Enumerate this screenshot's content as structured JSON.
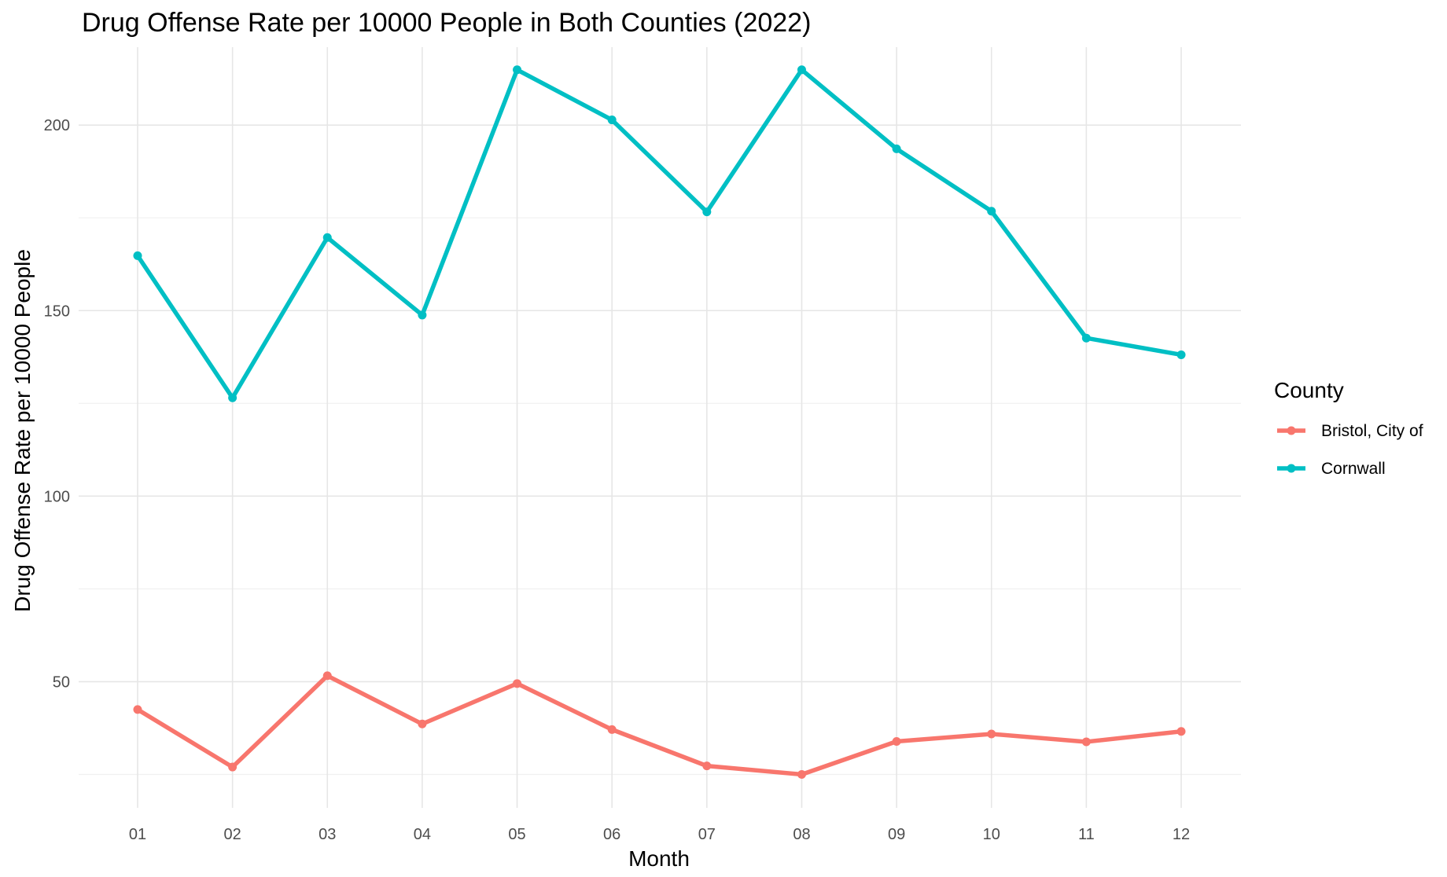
{
  "chart_data": {
    "type": "line",
    "title": "Drug Offense Rate per 10000 People in Both Counties (2022)",
    "xlabel": "Month",
    "ylabel": "Drug Offense Rate per 10000 People",
    "categories": [
      "01",
      "02",
      "03",
      "04",
      "05",
      "06",
      "07",
      "08",
      "09",
      "10",
      "11",
      "12"
    ],
    "y_ticks": [
      50,
      100,
      150,
      200
    ],
    "ylim": [
      16,
      221
    ],
    "grid": true,
    "legend_title": "County",
    "legend_position": "right",
    "series": [
      {
        "name": "Bristol, City of",
        "color": "#F8766D",
        "values": [
          42.5,
          27.0,
          51.6,
          38.6,
          49.5,
          37.1,
          27.3,
          25.0,
          33.9,
          35.9,
          33.8,
          36.6
        ]
      },
      {
        "name": "Cornwall",
        "color": "#00BFC4",
        "values": [
          164.8,
          126.5,
          169.7,
          148.8,
          214.9,
          201.4,
          176.6,
          214.9,
          193.6,
          176.8,
          142.6,
          138.1
        ]
      }
    ]
  }
}
